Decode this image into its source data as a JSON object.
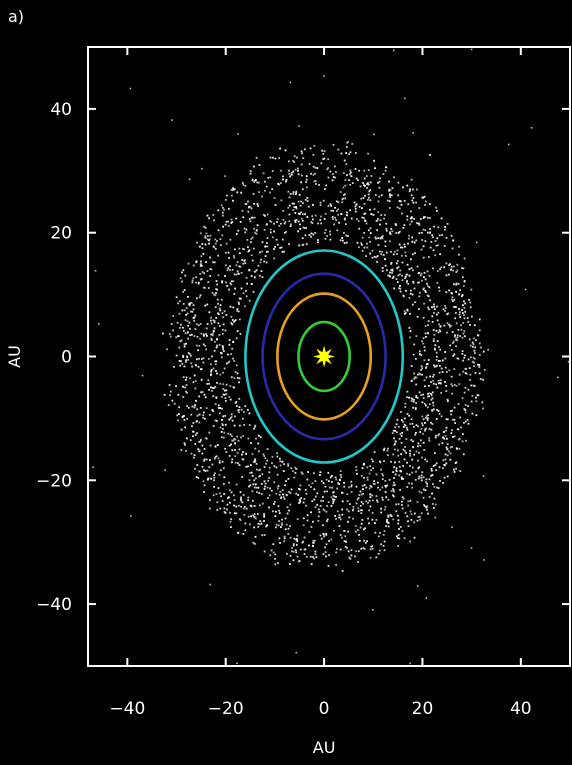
{
  "panel_label": "a)",
  "chart_data": {
    "type": "scatter",
    "title": "",
    "xlabel": "AU",
    "ylabel": "AU",
    "xlim": [
      -48,
      50
    ],
    "ylim": [
      -50,
      50
    ],
    "xticks": [
      -40,
      -20,
      0,
      20,
      40
    ],
    "yticks": [
      40,
      20,
      0,
      -20,
      -40
    ],
    "xtick_labels": [
      "−40",
      "−20",
      "0",
      "20",
      "40"
    ],
    "ytick_labels": [
      "40",
      "20",
      "0",
      "−20",
      "−40"
    ],
    "grid": false,
    "background": "#000000",
    "axis_color": "#ffffff",
    "star": {
      "x": 0,
      "y": 0,
      "color": "#ffff00",
      "icon": "sun-star"
    },
    "orbits": [
      {
        "radius": 5.2,
        "color": "#33cc33"
      },
      {
        "radius": 9.5,
        "color": "#e8a020"
      },
      {
        "radius": 12.5,
        "color": "#2a2aa8"
      },
      {
        "radius": 16,
        "color": "#22c8c8"
      }
    ],
    "particle_disk": {
      "color": "#ffffff",
      "inner_radius": 17.5,
      "outer_radius": 32,
      "x_stretch": 1.0,
      "y_stretch": 1.06,
      "density_rings": [
        {
          "radius": 19,
          "weight": 0.5
        },
        {
          "radius": 23,
          "weight": 1.0
        },
        {
          "radius": 28,
          "weight": 1.0
        },
        {
          "radius": 31,
          "weight": 0.6
        }
      ]
    }
  }
}
